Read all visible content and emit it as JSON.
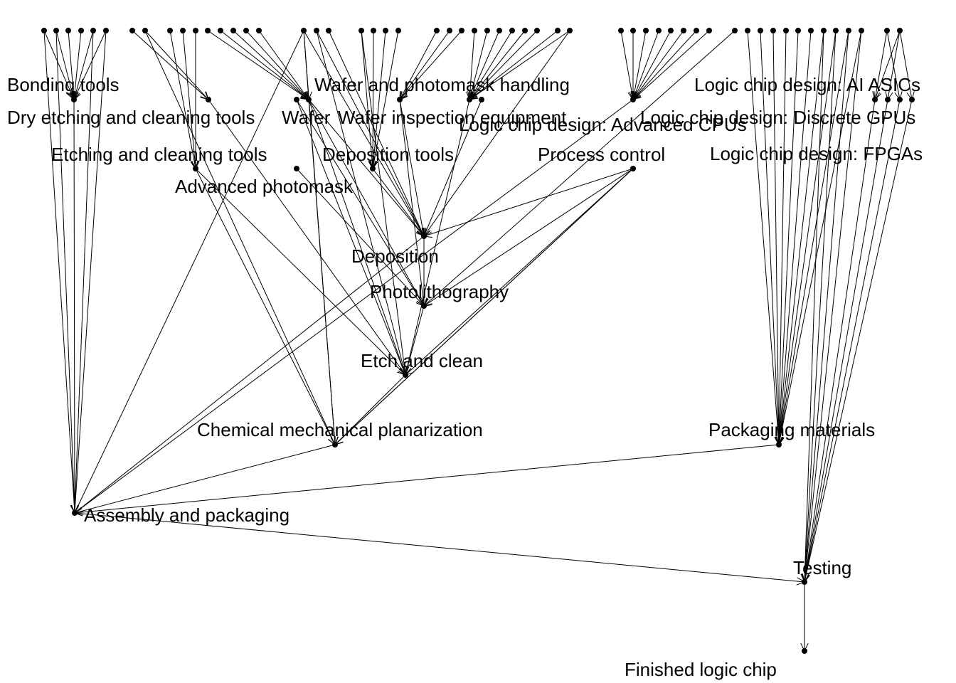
{
  "diagram": {
    "type": "directed-graph",
    "nodes": [
      {
        "id": "bonding_tools",
        "label": "Bonding tools"
      },
      {
        "id": "dry_etch_tools",
        "label": "Dry etching and cleaning tools"
      },
      {
        "id": "etch_tools",
        "label": "Etching and cleaning tools"
      },
      {
        "id": "adv_photomask",
        "label": "Advanced photomask"
      },
      {
        "id": "wafer",
        "label": "Wafer"
      },
      {
        "id": "wafer_inspection",
        "label": "Wafer inspection equipment"
      },
      {
        "id": "wafer_handling",
        "label": "Wafer and photomask handling"
      },
      {
        "id": "deposition_tools",
        "label": "Deposition tools"
      },
      {
        "id": "process_control",
        "label": "Process control"
      },
      {
        "id": "lcd_cpu",
        "label": "Logic chip design: Advanced CPUs"
      },
      {
        "id": "lcd_ai",
        "label": "Logic chip design: AI ASICs"
      },
      {
        "id": "lcd_gpu",
        "label": "Logic chip design: Discrete GPUs"
      },
      {
        "id": "lcd_fpga",
        "label": "Logic chip design: FPGAs"
      },
      {
        "id": "deposition",
        "label": "Deposition"
      },
      {
        "id": "photolithography",
        "label": "Photolithography"
      },
      {
        "id": "etch_clean",
        "label": "Etch and clean"
      },
      {
        "id": "cmp",
        "label": "Chemical mechanical planarization"
      },
      {
        "id": "packaging_materials",
        "label": "Packaging materials"
      },
      {
        "id": "assembly",
        "label": "Assembly and packaging"
      },
      {
        "id": "testing",
        "label": "Testing"
      },
      {
        "id": "finished",
        "label": "Finished logic chip"
      }
    ],
    "edges": [
      [
        "wafer",
        "deposition"
      ],
      [
        "wafer",
        "photolithography"
      ],
      [
        "wafer",
        "etch_clean"
      ],
      [
        "wafer",
        "cmp"
      ],
      [
        "deposition_tools",
        "deposition"
      ],
      [
        "adv_photomask",
        "photolithography"
      ],
      [
        "etch_tools",
        "etch_clean"
      ],
      [
        "etch_tools",
        "cmp"
      ],
      [
        "process_control",
        "deposition"
      ],
      [
        "process_control",
        "photolithography"
      ],
      [
        "process_control",
        "etch_clean"
      ],
      [
        "process_control",
        "cmp"
      ],
      [
        "wafer_handling",
        "deposition"
      ],
      [
        "wafer_handling",
        "photolithography"
      ],
      [
        "wafer_inspection",
        "photolithography"
      ],
      [
        "wafer_inspection",
        "etch_clean"
      ],
      [
        "deposition",
        "photolithography"
      ],
      [
        "photolithography",
        "etch_clean"
      ],
      [
        "etch_clean",
        "cmp"
      ],
      [
        "cmp",
        "assembly"
      ],
      [
        "deposition",
        "assembly"
      ],
      [
        "bonding_tools",
        "assembly"
      ],
      [
        "packaging_materials",
        "assembly"
      ],
      [
        "assembly",
        "testing"
      ],
      [
        "testing",
        "finished"
      ],
      [
        "lcd_cpu",
        "assembly"
      ],
      [
        "lcd_ai",
        "testing"
      ],
      [
        "lcd_gpu",
        "testing"
      ],
      [
        "lcd_fpga",
        "testing"
      ]
    ]
  }
}
